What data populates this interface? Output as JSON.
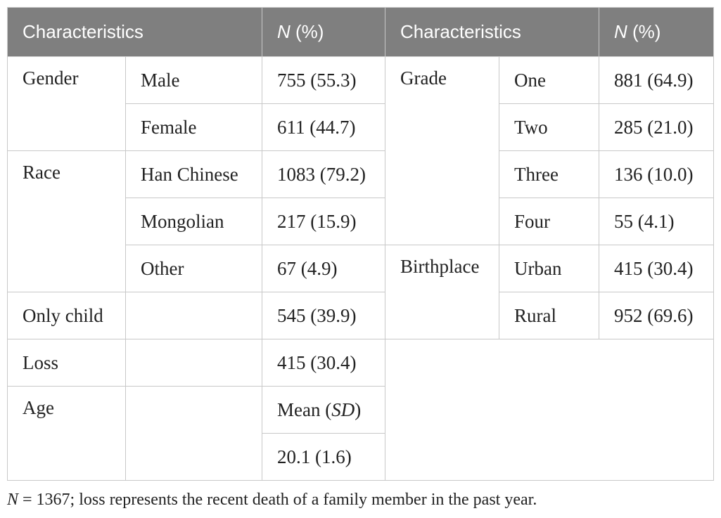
{
  "header": {
    "characteristics_left": "Characteristics",
    "n_symbol_left": "N",
    "n_pct_left": " (%)",
    "characteristics_right": "Characteristics",
    "n_symbol_right": "N",
    "n_pct_right": " (%)"
  },
  "left": {
    "gender": {
      "label": "Gender",
      "male": "Male",
      "male_n": "755 (55.3)",
      "female": "Female",
      "female_n": "611 (44.7)"
    },
    "race": {
      "label": "Race",
      "han": "Han Chinese",
      "han_n": "1083 (79.2)",
      "mongolian": "Mongolian",
      "mongolian_n": "217 (15.9)",
      "other": "Other",
      "other_n": "67 (4.9)"
    },
    "only_child": {
      "label": "Only child",
      "n": "545 (39.9)"
    },
    "loss": {
      "label": "Loss",
      "n": "415 (30.4)"
    },
    "age": {
      "label": "Age",
      "mean_label": "Mean (",
      "sd_label": "SD",
      "close_paren": ")",
      "value": "20.1 (1.6)"
    }
  },
  "right": {
    "grade": {
      "label": "Grade",
      "one": "One",
      "one_n": "881 (64.9)",
      "two": "Two",
      "two_n": "285 (21.0)",
      "three": "Three",
      "three_n": "136 (10.0)",
      "four": "Four",
      "four_n": "55 (4.1)"
    },
    "birthplace": {
      "label": "Birthplace",
      "urban": "Urban",
      "urban_n": "415 (30.4)",
      "rural": "Rural",
      "rural_n": "952 (69.6)"
    }
  },
  "footnote": {
    "n_symbol": "N",
    "text": " = 1367; loss represents the recent death of a family member in the past year."
  }
}
